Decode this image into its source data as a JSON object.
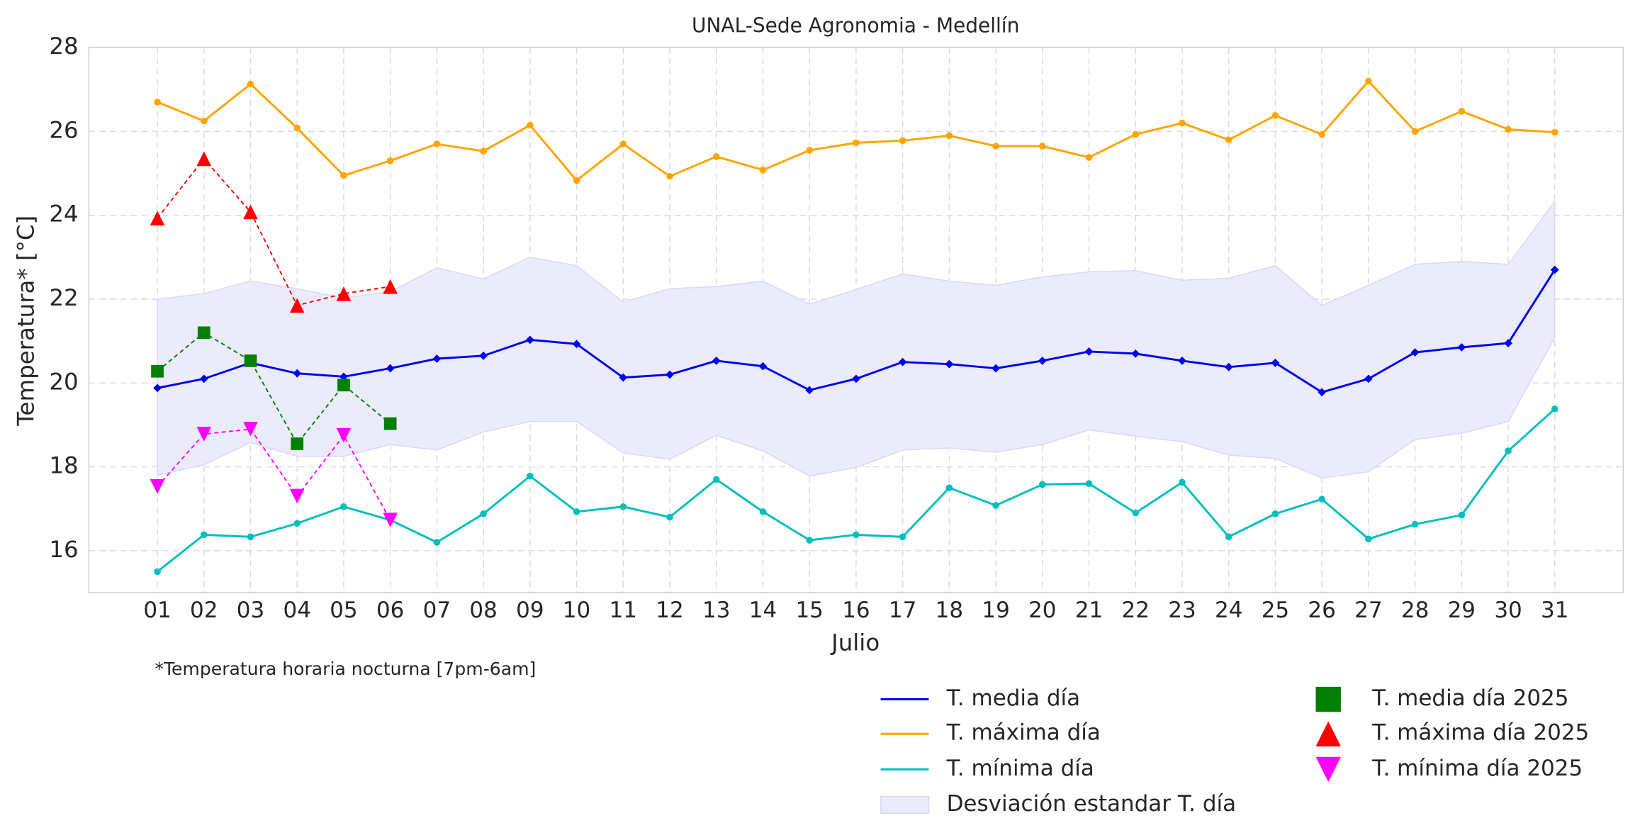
{
  "chart_data": {
    "type": "line",
    "title": "UNAL-Sede Agronomia - Medellín",
    "xlabel": "Julio",
    "ylabel": "Temperatura* [°C]",
    "annotation": "*Temperatura horaria nocturna [7pm-6am]",
    "categories": [
      "01",
      "02",
      "03",
      "04",
      "05",
      "06",
      "07",
      "08",
      "09",
      "10",
      "11",
      "12",
      "13",
      "14",
      "15",
      "16",
      "17",
      "18",
      "19",
      "20",
      "21",
      "22",
      "23",
      "24",
      "25",
      "26",
      "27",
      "28",
      "29",
      "30",
      "31"
    ],
    "ylim": [
      15,
      28
    ],
    "yticks": [
      16,
      18,
      20,
      22,
      24,
      26,
      28
    ],
    "grid": true,
    "legend": "lower right",
    "series": [
      {
        "name": "T. media día",
        "color": "#0000ee",
        "marker": "diamond",
        "linestyle": "solid",
        "values": [
          19.88,
          20.1,
          20.48,
          20.23,
          20.15,
          20.35,
          20.58,
          20.65,
          21.03,
          20.93,
          20.13,
          20.2,
          20.53,
          20.4,
          19.83,
          20.1,
          20.5,
          20.45,
          20.35,
          20.53,
          20.75,
          20.7,
          20.53,
          20.38,
          20.48,
          19.78,
          20.1,
          20.73,
          20.85,
          20.95,
          22.7
        ]
      },
      {
        "name": "T. máxima día",
        "color": "#ffa500",
        "marker": "circle",
        "linestyle": "solid",
        "values": [
          26.7,
          26.25,
          27.13,
          26.08,
          24.95,
          25.3,
          25.7,
          25.53,
          26.15,
          24.83,
          25.7,
          24.93,
          25.4,
          25.08,
          25.55,
          25.73,
          25.78,
          25.9,
          25.65,
          25.65,
          25.38,
          25.93,
          26.2,
          25.8,
          26.38,
          25.93,
          27.2,
          26.0,
          26.48,
          26.05,
          25.98
        ]
      },
      {
        "name": "T. mínima día",
        "color": "#00bfbf",
        "marker": "circle",
        "linestyle": "solid",
        "values": [
          15.5,
          16.38,
          16.33,
          16.65,
          17.05,
          16.73,
          16.2,
          16.88,
          17.78,
          16.93,
          17.05,
          16.8,
          17.7,
          16.93,
          16.25,
          16.38,
          16.33,
          17.5,
          17.08,
          17.58,
          17.6,
          16.9,
          17.63,
          16.33,
          16.88,
          17.23,
          16.28,
          16.63,
          16.85,
          18.38,
          19.38
        ]
      },
      {
        "name": "T. media día 2025",
        "color": "#008000",
        "marker": "square",
        "linestyle": "dashed",
        "values": [
          20.28,
          21.2,
          20.53,
          18.55,
          19.95,
          19.03,
          null,
          null,
          null,
          null,
          null,
          null,
          null,
          null,
          null,
          null,
          null,
          null,
          null,
          null,
          null,
          null,
          null,
          null,
          null,
          null,
          null,
          null,
          null,
          null,
          null
        ]
      },
      {
        "name": "T. máxima día 2025",
        "color": "#ff0000",
        "marker": "triangle-up",
        "linestyle": "dashed",
        "values": [
          23.93,
          25.35,
          24.08,
          21.85,
          22.13,
          22.3,
          null,
          null,
          null,
          null,
          null,
          null,
          null,
          null,
          null,
          null,
          null,
          null,
          null,
          null,
          null,
          null,
          null,
          null,
          null,
          null,
          null,
          null,
          null,
          null,
          null
        ]
      },
      {
        "name": "T. mínima día 2025",
        "color": "#ff00ff",
        "marker": "triangle-down",
        "linestyle": "dashed",
        "values": [
          17.53,
          18.78,
          18.9,
          17.3,
          18.75,
          16.73,
          null,
          null,
          null,
          null,
          null,
          null,
          null,
          null,
          null,
          null,
          null,
          null,
          null,
          null,
          null,
          null,
          null,
          null,
          null,
          null,
          null,
          null,
          null,
          null,
          null
        ]
      }
    ],
    "band": {
      "name": "Desviación estandar T. día",
      "color": "#ebebfc",
      "upper": [
        22.0,
        22.13,
        22.43,
        22.25,
        22.03,
        22.18,
        22.75,
        22.48,
        23.0,
        22.8,
        21.93,
        22.25,
        22.3,
        22.43,
        21.88,
        22.23,
        22.6,
        22.43,
        22.33,
        22.53,
        22.65,
        22.68,
        22.45,
        22.5,
        22.8,
        21.85,
        22.33,
        22.83,
        22.9,
        22.83,
        24.33
      ],
      "lower": [
        17.8,
        18.05,
        18.58,
        18.25,
        18.25,
        18.53,
        18.4,
        18.83,
        19.08,
        19.08,
        18.33,
        18.18,
        18.75,
        18.38,
        17.78,
        17.98,
        18.4,
        18.45,
        18.35,
        18.53,
        18.88,
        18.73,
        18.6,
        18.28,
        18.2,
        17.73,
        17.88,
        18.65,
        18.8,
        19.08,
        21.08
      ]
    }
  }
}
